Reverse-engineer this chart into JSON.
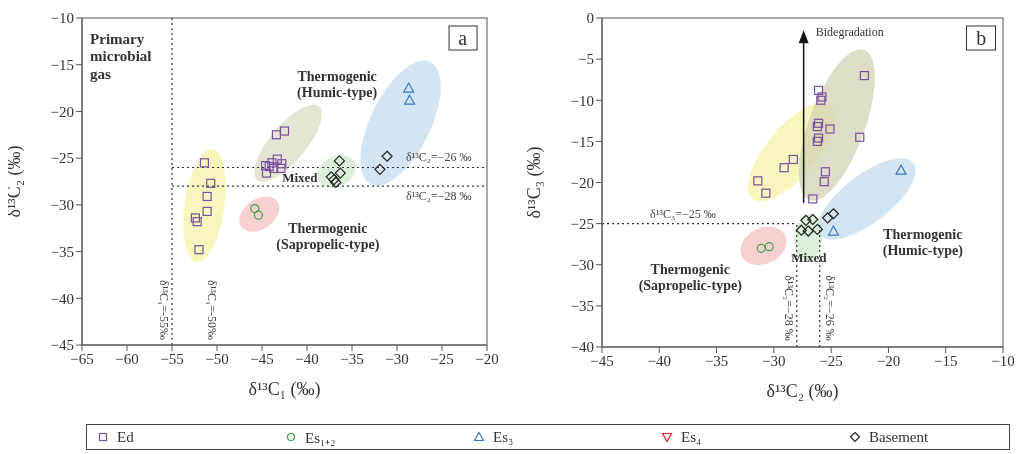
{
  "chart_data": [
    {
      "type": "scatter",
      "xlabel": "δ¹³C₁ (‰)",
      "ylabel": "δ¹³C₂ (‰)",
      "xlim": [
        -65,
        -20
      ],
      "xticks": [
        -65,
        -60,
        -55,
        -50,
        -45,
        -40,
        -35,
        -30,
        -25,
        -20
      ],
      "ylim": [
        -45,
        -10
      ],
      "yticks": [
        -45,
        -40,
        -35,
        -30,
        -25,
        -20,
        -15,
        -10
      ],
      "legend": "bottom",
      "series": [
        {
          "name": "Ed",
          "color": "#7b4fa0",
          "marker": "square",
          "x": [
            -42.5,
            -43.4,
            -43.3,
            -43.9,
            -44.6,
            -44.2,
            -43.7,
            -42.8,
            -42.9,
            -44.5,
            -51.4,
            -50.7,
            -51.1,
            -51.1,
            -52.4,
            -52.2,
            -52.0
          ],
          "values": [
            -22.1,
            -22.5,
            -25.1,
            -25.5,
            -25.8,
            -25.9,
            -26.1,
            -25.6,
            -26.1,
            -26.6,
            -25.5,
            -27.7,
            -29.1,
            -30.7,
            -31.4,
            -31.8,
            -34.8
          ]
        },
        {
          "name": "Es₁₊₂",
          "color": "#3aa04a",
          "marker": "circle",
          "x": [
            -45.8,
            -45.4
          ],
          "values": [
            -30.4,
            -31.1
          ]
        },
        {
          "name": "Es₃",
          "color": "#3a78c0",
          "marker": "triangle",
          "x": [
            -28.7,
            -28.6
          ],
          "values": [
            -17.5,
            -18.8
          ]
        },
        {
          "name": "Es₄",
          "color": "#e02020",
          "marker": "triangle-down"
        },
        {
          "name": "Basement",
          "color": "#222222",
          "marker": "diamond",
          "x": [
            -31.1,
            -31.9,
            -36.4,
            -36.3,
            -37.3,
            -37.0,
            -36.8
          ],
          "values": [
            -24.8,
            -26.2,
            -25.3,
            -26.6,
            -27.0,
            -27.3,
            -27.6
          ]
        }
      ],
      "ref_lines": [
        {
          "axis": "x",
          "value": -55,
          "label": "δ¹³C₁=-55‰",
          "line_style": "dotted",
          "color": "#333333"
        },
        {
          "axis": "y",
          "value": -26,
          "label": "δ¹³C₂=−26 ‰",
          "line_style": "dotted",
          "color": "#333333"
        },
        {
          "axis": "y",
          "value": -28,
          "label": "δ¹³C₂=−28 ‰",
          "line_style": "dotted",
          "color": "#333333"
        }
      ],
      "annotations": [
        "Primary microbial gas",
        "Thermogenic (Humic-type)",
        "Mixed",
        "Thermogenic (Sapropelic-type)",
        "a",
        "δ¹³C₁=-50‰"
      ]
    },
    {
      "type": "scatter",
      "xlabel": "δ¹³C₂ (‰)",
      "ylabel": "δ¹³C₃ (‰)",
      "xlim": [
        -45,
        -10
      ],
      "xticks": [
        -45,
        -40,
        -35,
        -30,
        -25,
        -20,
        -15,
        -10
      ],
      "ylim": [
        -40,
        0
      ],
      "yticks": [
        -40,
        -35,
        -30,
        -25,
        -20,
        -15,
        -10,
        -5,
        0
      ],
      "series": [
        {
          "color": "#7b4fa0",
          "marker": "square",
          "x": [
            -22.1,
            -26.1,
            -25.8,
            -25.9,
            -26.1,
            -26.2,
            -25.1,
            -22.5,
            -26.1,
            -26.2,
            -25.5,
            -25.6,
            -26.6,
            -28.3,
            -29.1,
            -31.4,
            -30.7
          ],
          "values": [
            -7.0,
            -8.8,
            -9.6,
            -10.0,
            -12.8,
            -13.2,
            -13.5,
            -14.5,
            -14.6,
            -15.0,
            -18.7,
            -19.9,
            -22.0,
            -17.2,
            -18.2,
            -19.8,
            -21.3
          ]
        },
        {
          "color": "#3aa04a",
          "marker": "circle",
          "x": [
            -31.1,
            -30.4
          ],
          "values": [
            -28.0,
            -27.8
          ]
        },
        {
          "color": "#3a78c0",
          "marker": "triangle",
          "x": [
            -18.9,
            -24.8
          ],
          "values": [
            -18.5,
            -25.9
          ]
        },
        {
          "color": "#222222",
          "marker": "diamond",
          "x": [
            -27.2,
            -26.6,
            -27.6,
            -27.0,
            -26.2,
            -25.3,
            -24.8
          ],
          "values": [
            -24.6,
            -24.5,
            -25.8,
            -25.9,
            -25.7,
            -24.3,
            -23.8
          ]
        }
      ],
      "ref_lines": [
        {
          "axis": "y",
          "value": -25,
          "label": "δ¹³C₃=−25 ‰",
          "line_style": "dotted",
          "color": "#333333"
        },
        {
          "axis": "x",
          "value": -28,
          "label": "δ¹³C₂=−28 ‰",
          "line_style": "dotted",
          "color": "#333333"
        },
        {
          "axis": "x",
          "value": -26,
          "label": "δ¹³C₂=−26 ‰",
          "line_style": "dotted",
          "color": "#333333"
        }
      ],
      "annotations": [
        "Bidegradation",
        "Thermogenic (Humic-type)",
        "Mixed",
        "Thermogenic (Sapropelic-type)",
        "b"
      ]
    }
  ]
}
